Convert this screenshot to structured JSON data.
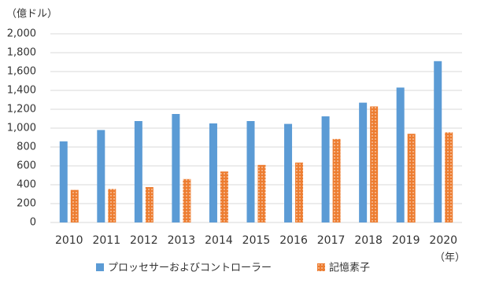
{
  "chart_data": {
    "type": "bar",
    "y_label": "（億ドル）",
    "x_label": "（年）",
    "categories": [
      "2010",
      "2011",
      "2012",
      "2013",
      "2014",
      "2015",
      "2016",
      "2017",
      "2018",
      "2019",
      "2020"
    ],
    "series": [
      {
        "name": "プロッセサーおよびコントローラー",
        "color": "#5b9bd5",
        "values": [
          860,
          980,
          1075,
          1150,
          1050,
          1075,
          1045,
          1125,
          1270,
          1430,
          1710
        ]
      },
      {
        "name": "記憶素子",
        "color": "#ed7d31",
        "pattern": "dots",
        "values": [
          345,
          355,
          375,
          460,
          540,
          610,
          635,
          885,
          1230,
          940,
          955
        ]
      }
    ],
    "ylim": [
      0,
      2000
    ],
    "yticks": [
      0,
      200,
      400,
      600,
      800,
      {
        "value": 1000,
        "label": "1,000"
      },
      {
        "value": 1200,
        "label": "1,200"
      },
      {
        "value": 1400,
        "label": "1,400"
      },
      {
        "value": 1600,
        "label": "1,600"
      },
      {
        "value": 1800,
        "label": "1,800"
      },
      {
        "value": 2000,
        "label": "2,000"
      }
    ],
    "grid": true
  }
}
